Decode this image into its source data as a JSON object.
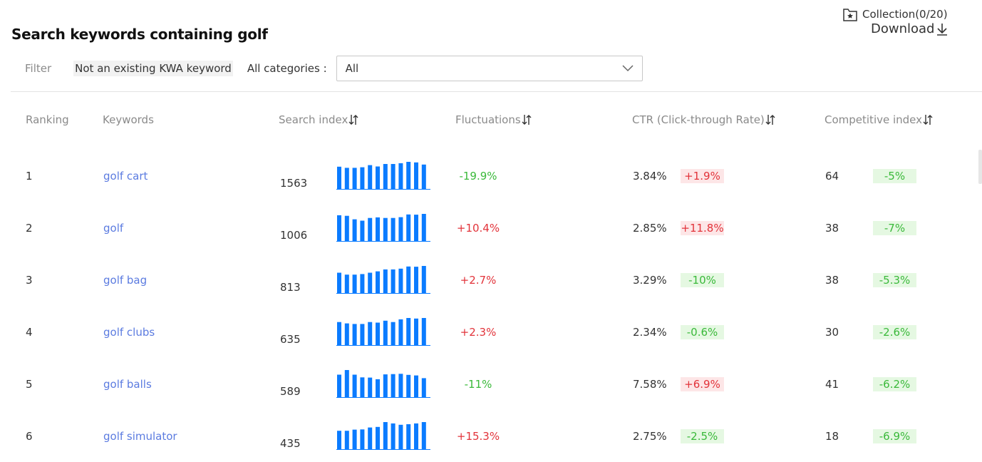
{
  "header": {
    "title": "Search keywords containing golf",
    "collection_label": "Collection(0/20)",
    "download_label": "Download"
  },
  "filter": {
    "label": "Filter",
    "chip_label": "Not an existing KWA keyword",
    "categories_label": "All categories :",
    "select_value": "All"
  },
  "table": {
    "columns": {
      "ranking": "Ranking",
      "keywords": "Keywords",
      "search_index": "Search index",
      "fluctuations": "Fluctuations",
      "ctr": "CTR (Click-through Rate)",
      "competitive": "Competitive index"
    },
    "rows": [
      {
        "rank": "1",
        "keyword": "golf cart",
        "index": "1563",
        "trend": [
          0.82,
          0.78,
          0.78,
          0.8,
          0.88,
          0.83,
          0.92,
          0.92,
          0.95,
          1.0,
          0.98,
          0.9
        ],
        "fluct": "-19.9%",
        "ctr": "3.84%",
        "ctr_change": "+1.9%",
        "comp": "64",
        "comp_change": "-5%"
      },
      {
        "rank": "2",
        "keyword": "golf",
        "index": "1006",
        "trend": [
          0.95,
          0.93,
          0.8,
          0.75,
          0.85,
          0.87,
          0.85,
          0.85,
          0.88,
          0.98,
          0.97,
          1.0
        ],
        "fluct": "+10.4%",
        "ctr": "2.85%",
        "ctr_change": "+11.8%",
        "comp": "38",
        "comp_change": "-7%"
      },
      {
        "rank": "3",
        "keyword": "golf bag",
        "index": "813",
        "trend": [
          0.75,
          0.68,
          0.68,
          0.7,
          0.75,
          0.8,
          0.87,
          0.87,
          0.9,
          0.98,
          0.97,
          1.0
        ],
        "fluct": "+2.7%",
        "ctr": "3.29%",
        "ctr_change": "-10%",
        "comp": "38",
        "comp_change": "-5.3%"
      },
      {
        "rank": "4",
        "keyword": "golf clubs",
        "index": "635",
        "trend": [
          0.85,
          0.8,
          0.78,
          0.78,
          0.85,
          0.83,
          0.9,
          0.85,
          0.95,
          1.0,
          0.98,
          1.0
        ],
        "fluct": "+2.3%",
        "ctr": "2.34%",
        "ctr_change": "-0.6%",
        "comp": "30",
        "comp_change": "-2.6%"
      },
      {
        "rank": "5",
        "keyword": "golf balls",
        "index": "589",
        "trend": [
          0.83,
          1.0,
          0.83,
          0.73,
          0.72,
          0.66,
          0.84,
          0.85,
          0.86,
          0.82,
          0.8,
          0.7
        ],
        "fluct": "-11%",
        "ctr": "7.58%",
        "ctr_change": "+6.9%",
        "comp": "41",
        "comp_change": "-6.2%"
      },
      {
        "rank": "6",
        "keyword": "golf simulator",
        "index": "435",
        "trend": [
          0.68,
          0.68,
          0.72,
          0.73,
          0.8,
          0.82,
          1.0,
          0.95,
          0.9,
          0.92,
          0.95,
          1.0
        ],
        "fluct": "+15.3%",
        "ctr": "2.75%",
        "ctr_change": "-2.5%",
        "comp": "18",
        "comp_change": "-6.9%"
      }
    ]
  },
  "colors": {
    "bar": "#0a7bff",
    "positive": "#e2333a",
    "negative": "#3ab93a",
    "link": "#5b7be0"
  }
}
